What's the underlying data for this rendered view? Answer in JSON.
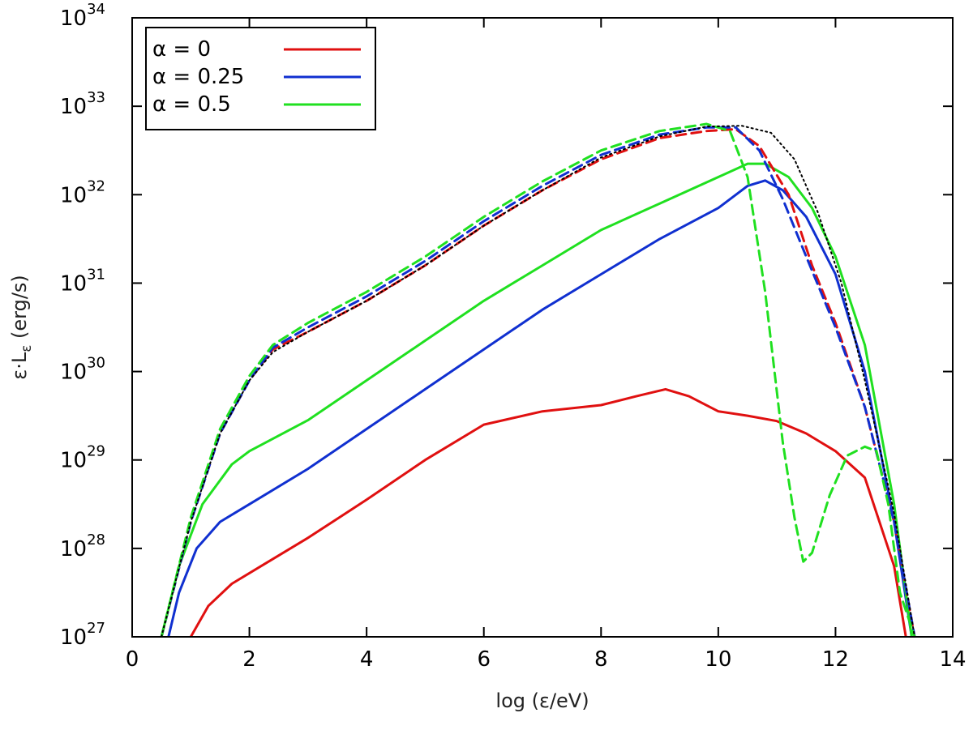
{
  "chart_data": {
    "type": "line",
    "title": "",
    "xlabel": "log (ε/eV)",
    "ylabel_main": "ε·L",
    "ylabel_sub": "ε",
    "ylabel_unit": " (erg/s)",
    "yscale": "log",
    "xlim": [
      0,
      14
    ],
    "ylim_log10": [
      27,
      34
    ],
    "xticks": [
      0,
      2,
      4,
      6,
      8,
      10,
      12,
      14
    ],
    "yticks_exp": [
      27,
      28,
      29,
      30,
      31,
      32,
      33,
      34
    ],
    "ytick_base": "10",
    "grid": false,
    "legend": {
      "position": "top-left",
      "entries": [
        {
          "label": "α = 0",
          "color": "#e01010"
        },
        {
          "label": "α = 0.25",
          "color": "#1030d0"
        },
        {
          "label": "α = 0.5",
          "color": "#20e020"
        }
      ]
    },
    "series": [
      {
        "name": "α = 0 total (solid)",
        "color": "#e01010",
        "style": "solid",
        "x": [
          1.0,
          1.3,
          1.7,
          2.2,
          3,
          4,
          5,
          6,
          7,
          8,
          8.6,
          9.1,
          9.5,
          10,
          10.5,
          11,
          11.5,
          12,
          12.5,
          13,
          13.2
        ],
        "log_y": [
          27.0,
          27.35,
          27.6,
          27.8,
          28.12,
          28.55,
          29.0,
          29.4,
          29.55,
          29.62,
          29.72,
          29.8,
          29.72,
          29.55,
          29.5,
          29.44,
          29.3,
          29.1,
          28.8,
          27.8,
          27.0
        ]
      },
      {
        "name": "α = 0.25 total (solid)",
        "color": "#1030d0",
        "style": "solid",
        "x": [
          0.62,
          0.8,
          1.1,
          1.5,
          2,
          3,
          4,
          5,
          6,
          7,
          8,
          9,
          10,
          10.5,
          10.8,
          11.1,
          11.5,
          12,
          12.5,
          13,
          13.3
        ],
        "log_y": [
          27.0,
          27.5,
          28.0,
          28.3,
          28.5,
          28.9,
          29.35,
          29.8,
          30.25,
          30.7,
          31.1,
          31.5,
          31.85,
          32.1,
          32.16,
          32.05,
          31.75,
          31.1,
          30.0,
          28.3,
          27.0
        ]
      },
      {
        "name": "α = 0.5 total (solid)",
        "color": "#20e020",
        "style": "solid",
        "x": [
          0.5,
          0.8,
          1.2,
          1.7,
          2,
          3,
          4,
          5,
          6,
          7,
          8,
          9,
          10,
          10.5,
          10.8,
          11.2,
          11.6,
          12,
          12.5,
          13,
          13.3
        ],
        "log_y": [
          27.0,
          27.8,
          28.5,
          28.95,
          29.1,
          29.45,
          29.9,
          30.35,
          30.8,
          31.2,
          31.6,
          31.9,
          32.2,
          32.35,
          32.35,
          32.2,
          31.85,
          31.3,
          30.3,
          28.5,
          27.0
        ]
      },
      {
        "name": "α = 0 (dashed)",
        "color": "#e01010",
        "style": "dashed",
        "x": [
          0.5,
          1,
          1.5,
          2,
          2.4,
          3,
          4,
          5,
          6,
          7,
          8,
          9,
          9.8,
          10.3,
          10.7,
          11.2,
          11.6,
          12,
          12.5,
          13,
          13.35
        ],
        "log_y": [
          27.0,
          28.3,
          29.3,
          29.9,
          30.25,
          30.45,
          30.8,
          31.2,
          31.65,
          32.05,
          32.4,
          32.64,
          32.72,
          32.74,
          32.55,
          32.0,
          31.2,
          30.55,
          29.6,
          28.3,
          27.0
        ]
      },
      {
        "name": "α = 0.25 (dashed)",
        "color": "#1030d0",
        "style": "dashed",
        "x": [
          0.5,
          1,
          1.5,
          2,
          2.4,
          3,
          4,
          5,
          6,
          7,
          8,
          9,
          9.8,
          10.3,
          10.7,
          11.1,
          11.5,
          12,
          12.5,
          13,
          13.35
        ],
        "log_y": [
          27.0,
          28.3,
          29.3,
          29.9,
          30.27,
          30.5,
          30.85,
          31.25,
          31.7,
          32.1,
          32.45,
          32.68,
          32.76,
          32.76,
          32.5,
          31.95,
          31.3,
          30.5,
          29.6,
          28.3,
          27.0
        ]
      },
      {
        "name": "α = 0.5 (dashed)",
        "color": "#20e020",
        "style": "dashed",
        "x": [
          0.5,
          1,
          1.5,
          2,
          2.4,
          3,
          4,
          5,
          6,
          7,
          8,
          9,
          9.8,
          10.2,
          10.5,
          10.8,
          11.1,
          11.3,
          11.45,
          11.6,
          11.9,
          12.2,
          12.5,
          12.7,
          12.9,
          13.1,
          13.35
        ],
        "log_y": [
          27.0,
          28.35,
          29.35,
          29.95,
          30.3,
          30.55,
          30.9,
          31.3,
          31.75,
          32.15,
          32.5,
          32.72,
          32.8,
          32.72,
          32.2,
          30.9,
          29.2,
          28.35,
          27.85,
          27.95,
          28.6,
          29.05,
          29.15,
          29.1,
          28.5,
          27.5,
          27.0
        ]
      },
      {
        "name": "total (dotted black)",
        "color": "#000000",
        "style": "dotted",
        "x": [
          0.5,
          1,
          1.5,
          2,
          2.4,
          3,
          4,
          5,
          6,
          7,
          8,
          9,
          9.8,
          10.4,
          10.9,
          11.3,
          11.7,
          12.1,
          12.5,
          13,
          13.35
        ],
        "log_y": [
          27.0,
          28.3,
          29.3,
          29.9,
          30.22,
          30.45,
          30.8,
          31.2,
          31.65,
          32.05,
          32.42,
          32.66,
          32.77,
          32.78,
          32.7,
          32.4,
          31.8,
          31.0,
          29.9,
          28.4,
          27.0
        ]
      }
    ]
  }
}
